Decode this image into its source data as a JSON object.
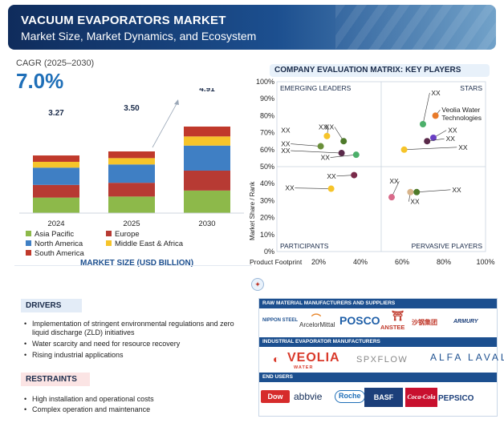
{
  "header": {
    "title": "VACUUM EVAPORATORS MARKET",
    "subtitle": "Market Size, Market Dynamics, and Ecosystem"
  },
  "cagr": {
    "label": "CAGR (2025–2030)",
    "value": "7.0%"
  },
  "colors": {
    "asia_pacific": "#8db94a",
    "europe": "#b73a33",
    "north_america": "#3f7fc4",
    "middle_east_africa": "#f6c42a",
    "south_america": "#c0392b"
  },
  "chart_data": [
    {
      "type": "bar",
      "stacked": true,
      "title": "MARKET SIZE (USD BILLION)",
      "categories": [
        "2024",
        "2025",
        "2030"
      ],
      "totals": [
        "3.27",
        "3.50",
        "4.91"
      ],
      "series": [
        {
          "name": "Asia Pacific",
          "values": [
            0.88,
            0.94,
            1.28
          ],
          "color": "#8db94a"
        },
        {
          "name": "Europe",
          "values": [
            0.72,
            0.78,
            1.13
          ],
          "color": "#b73a33"
        },
        {
          "name": "North America",
          "values": [
            0.98,
            1.04,
            1.42
          ],
          "color": "#3f7fc4"
        },
        {
          "name": "Middle East & Africa",
          "values": [
            0.33,
            0.36,
            0.52
          ],
          "color": "#f6c42a"
        },
        {
          "name": "South America",
          "values": [
            0.36,
            0.38,
            0.56
          ],
          "color": "#c0392b"
        }
      ],
      "legend": [
        {
          "name": "Asia Pacific",
          "color": "#8db94a"
        },
        {
          "name": "Europe",
          "color": "#b73a33"
        },
        {
          "name": "North America",
          "color": "#3f7fc4"
        },
        {
          "name": "Middle East & Africa",
          "color": "#f6c42a"
        },
        {
          "name": "South America",
          "color": "#c0392b"
        }
      ]
    },
    {
      "type": "scatter",
      "title": "COMPANY EVALUATION MATRIX: KEY PLAYERS",
      "xlabel": "Product Footprint",
      "ylabel": "Market Share / Rank",
      "xlim": [
        0,
        100
      ],
      "ylim": [
        0,
        100
      ],
      "xticks": [
        "20%",
        "40%",
        "60%",
        "80%",
        "100%"
      ],
      "yticks": [
        "0%",
        "10%",
        "20%",
        "30%",
        "40%",
        "50%",
        "60%",
        "70%",
        "80%",
        "90%",
        "100%"
      ],
      "quadrants": [
        "EMERGING LEADERS",
        "STARS",
        "PARTICIPANTS",
        "PERVASIVE PLAYERS"
      ],
      "points": [
        {
          "label": "XX",
          "x": 24,
          "y": 68,
          "color": "#f6c42a",
          "label_x": 20,
          "label_y": 72
        },
        {
          "label": "XX",
          "x": 32,
          "y": 65,
          "color": "#4e7a2a",
          "label_x": 23,
          "label_y": 72
        },
        {
          "label": "XX",
          "x": 21,
          "y": 62,
          "color": "#6a8f3a",
          "label_x": 2,
          "label_y": 62
        },
        {
          "label": "XX",
          "x": 31,
          "y": 58,
          "color": "#5a2a4a",
          "label_x": 2,
          "label_y": 58
        },
        {
          "label": "XX",
          "x": 38,
          "y": 57,
          "color": "#4caf6a",
          "label_x": 21,
          "label_y": 54
        },
        {
          "label": "XX",
          "x": 2,
          "y": 70,
          "color": "#ffffff",
          "label_x": 2,
          "label_y": 70
        },
        {
          "label": "XX",
          "x": 37,
          "y": 45,
          "color": "#7a2a4a",
          "label_x": 24,
          "label_y": 43
        },
        {
          "label": "XX",
          "x": 26,
          "y": 37,
          "color": "#f6c42a",
          "label_x": 4,
          "label_y": 36
        },
        {
          "label": "Veolia Water Technologies",
          "x": 76,
          "y": 80,
          "color": "#e87a2a",
          "label_x": 79,
          "label_y": 82
        },
        {
          "label": "XX",
          "x": 70,
          "y": 75,
          "color": "#4caf6a",
          "label_x": 74,
          "label_y": 92
        },
        {
          "label": "XX",
          "x": 75,
          "y": 67,
          "color": "#6a3fc4",
          "label_x": 82,
          "label_y": 70
        },
        {
          "label": "XX",
          "x": 72,
          "y": 65,
          "color": "#5a2a4a",
          "label_x": 81,
          "label_y": 65
        },
        {
          "label": "XX",
          "x": 61,
          "y": 60,
          "color": "#f6c42a",
          "label_x": 87,
          "label_y": 60
        },
        {
          "label": "XX",
          "x": 64,
          "y": 35,
          "color": "#d8b48a",
          "label_x": 64,
          "label_y": 28
        },
        {
          "label": "XX",
          "x": 67,
          "y": 35,
          "color": "#4e7a2a",
          "label_x": 84,
          "label_y": 35
        },
        {
          "label": "XX",
          "x": 55,
          "y": 32,
          "color": "#d86a8a",
          "label_x": 54,
          "label_y": 40
        }
      ]
    }
  ],
  "drivers": {
    "heading": "DRIVERS",
    "items": [
      "Implementation of stringent environmental regulations and zero liquid discharge (ZLD) initiatives",
      "Water scarcity and need for resource recovery",
      "Rising industrial applications"
    ]
  },
  "restraints": {
    "heading": "RESTRAINTS",
    "items": [
      "High installation and operational costs",
      "Complex operation and maintenance"
    ]
  },
  "ecosystem": {
    "raw_material_heading": "RAW MATERIAL MANUFACTURERS AND SUPPLIERS",
    "raw_material_logos": [
      "NIPPON STEEL",
      "ArcelorMittal",
      "POSCO",
      "ANSTEE",
      "沙钢集团",
      "ARMURY"
    ],
    "oem_heading": "INDUSTRIAL EVAPORATOR MANUFACTURERS",
    "oem_logos": [
      "VEOLIA",
      "WATER",
      "SPXFLOW",
      "ALFA LAVAL"
    ],
    "end_users_heading": "END USERS",
    "end_user_logos": [
      "Dow",
      "abbvie",
      "Roche",
      "BASF",
      "Coca-Cola",
      "PEPSICO"
    ]
  }
}
